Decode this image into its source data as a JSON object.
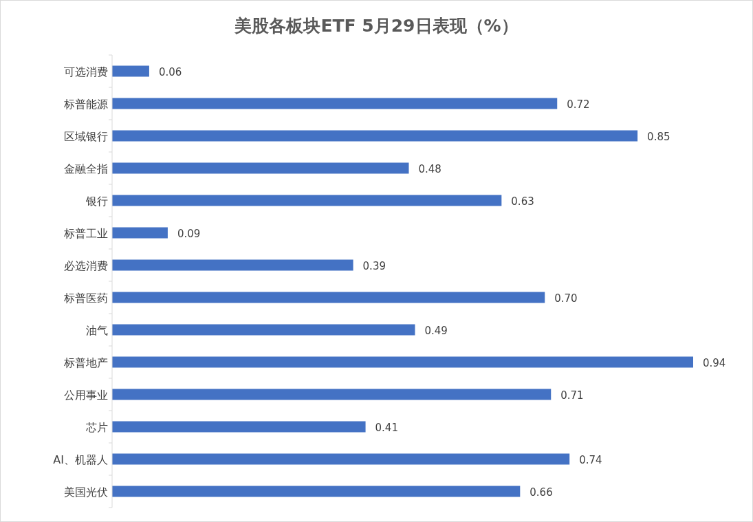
{
  "chart_data": {
    "type": "bar",
    "orientation": "horizontal",
    "title": "美股各板块ETF  5月29日表现（%）",
    "categories": [
      "可选消费",
      "标普能源",
      "区域银行",
      "金融全指",
      "银行",
      "标普工业",
      "必选消费",
      "标普医药",
      "油气",
      "标普地产",
      "公用事业",
      "芯片",
      "AI、机器人",
      "美国光伏"
    ],
    "values": [
      0.06,
      0.72,
      0.85,
      0.48,
      0.63,
      0.09,
      0.39,
      0.7,
      0.49,
      0.94,
      0.71,
      0.41,
      0.74,
      0.66
    ],
    "value_labels": [
      "0.06",
      "0.72",
      "0.85",
      "0.48",
      "0.63",
      "0.09",
      "0.39",
      "0.70",
      "0.49",
      "0.94",
      "0.71",
      "0.41",
      "0.74",
      "0.66"
    ],
    "color": "#4472c4"
  }
}
